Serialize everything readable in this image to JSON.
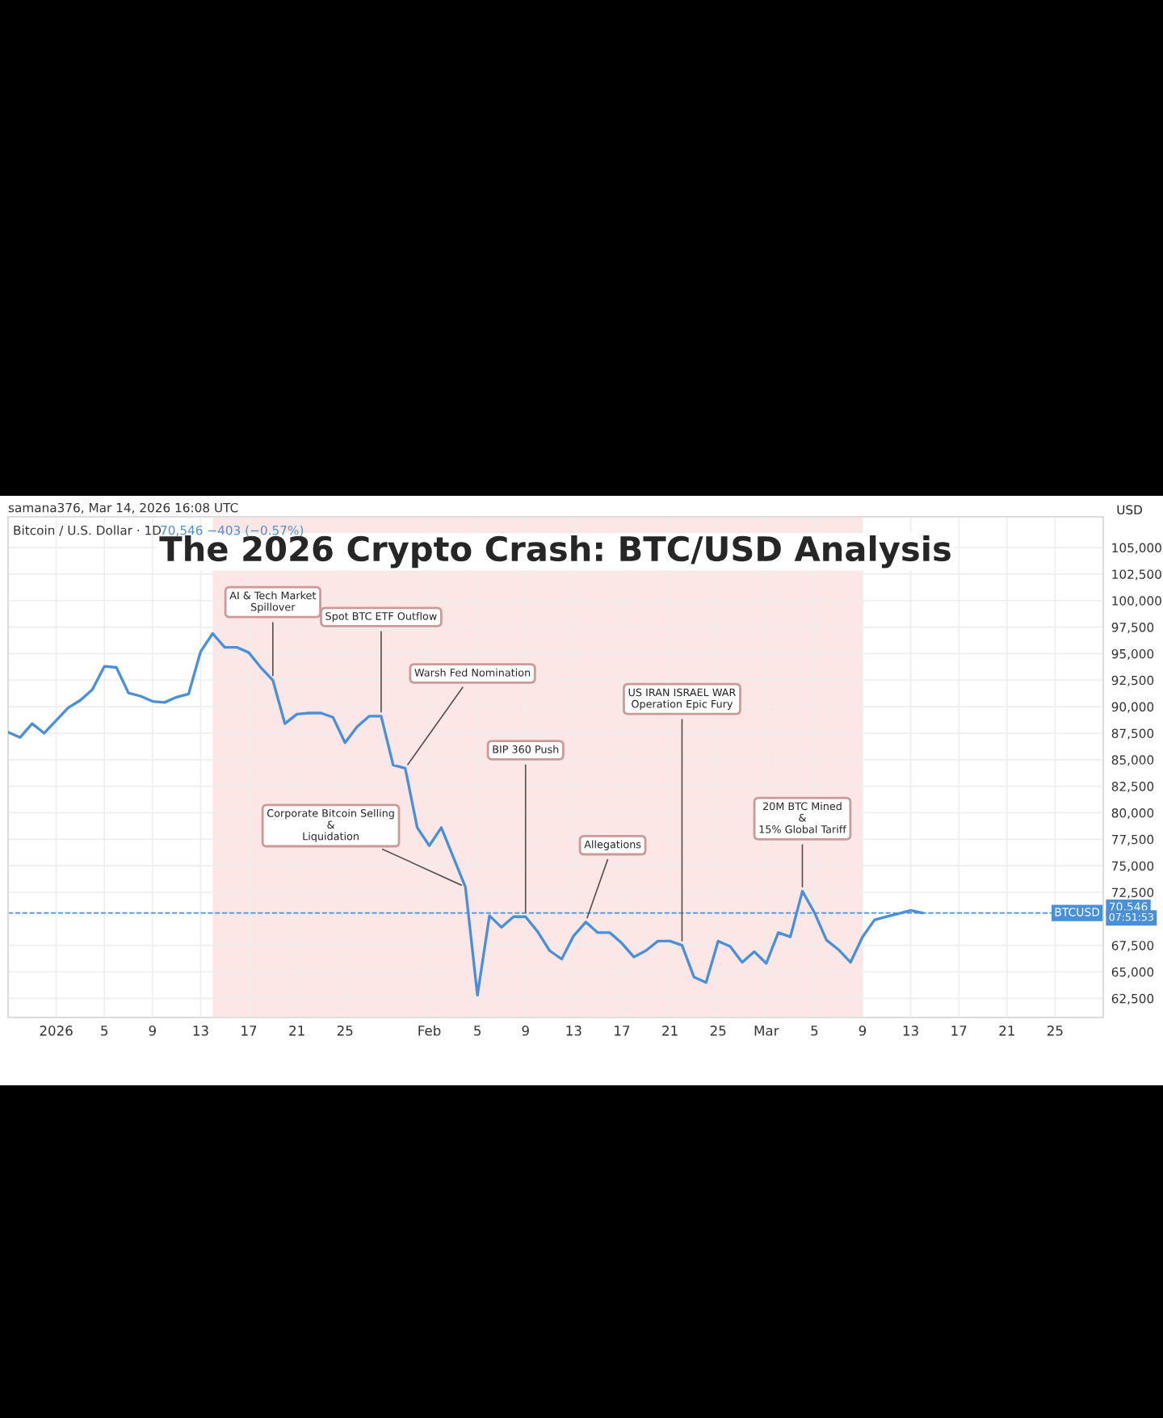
{
  "chart_data": {
    "type": "line",
    "title": "The 2026 Crypto Crash: BTC/USD Analysis",
    "ylabel": "USD",
    "x": [
      "2025-12-28",
      "2025-12-29",
      "2025-12-30",
      "2025-12-31",
      "2026-01-01",
      "2026-01-02",
      "2026-01-03",
      "2026-01-04",
      "2026-01-05",
      "2026-01-06",
      "2026-01-07",
      "2026-01-08",
      "2026-01-09",
      "2026-01-10",
      "2026-01-11",
      "2026-01-12",
      "2026-01-13",
      "2026-01-14",
      "2026-01-15",
      "2026-01-16",
      "2026-01-17",
      "2026-01-18",
      "2026-01-19",
      "2026-01-20",
      "2026-01-21",
      "2026-01-22",
      "2026-01-23",
      "2026-01-24",
      "2026-01-25",
      "2026-01-26",
      "2026-01-27",
      "2026-01-28",
      "2026-01-29",
      "2026-01-30",
      "2026-01-31",
      "2026-02-01",
      "2026-02-02",
      "2026-02-03",
      "2026-02-04",
      "2026-02-05",
      "2026-02-06",
      "2026-02-07",
      "2026-02-08",
      "2026-02-09",
      "2026-02-10",
      "2026-02-11",
      "2026-02-12",
      "2026-02-13",
      "2026-02-14",
      "2026-02-15",
      "2026-02-16",
      "2026-02-17",
      "2026-02-18",
      "2026-02-19",
      "2026-02-20",
      "2026-02-21",
      "2026-02-22",
      "2026-02-23",
      "2026-02-24",
      "2026-02-25",
      "2026-02-26",
      "2026-02-27",
      "2026-02-28",
      "2026-03-01",
      "2026-03-02",
      "2026-03-03",
      "2026-03-04",
      "2026-03-05",
      "2026-03-06",
      "2026-03-07",
      "2026-03-08",
      "2026-03-09",
      "2026-03-10",
      "2026-03-11",
      "2026-03-12",
      "2026-03-13",
      "2026-03-14"
    ],
    "series": [
      {
        "color": "#4a90d9",
        "values": [
          87600,
          87100,
          88400,
          87500,
          88700,
          89900,
          90600,
          91600,
          93800,
          93700,
          91300,
          91000,
          90500,
          90400,
          90900,
          91200,
          95200,
          96900,
          95600,
          95600,
          95100,
          93700,
          92500,
          88400,
          89300,
          89400,
          89400,
          89000,
          86600,
          88100,
          89100,
          89100,
          84500,
          84200,
          78600,
          76900,
          78600,
          75800,
          73000,
          62800,
          70300,
          69200,
          70200,
          70200,
          68800,
          67000,
          66200,
          68400,
          69700,
          68700,
          68700,
          67700,
          66400,
          67000,
          67900,
          67900,
          67500,
          64500,
          64000,
          67900,
          67400,
          65900,
          66900,
          65800,
          68700,
          68300,
          72600,
          70600,
          68000,
          67100,
          65900,
          68300,
          69900,
          70200,
          70500,
          70800,
          70546
        ]
      }
    ],
    "xlim": [
      "2025-12-28",
      "2026-03-29"
    ],
    "xticks": [
      {
        "value": "2026-01-01",
        "label": "2026"
      },
      {
        "value": "2026-01-05",
        "label": "5"
      },
      {
        "value": "2026-01-09",
        "label": "9"
      },
      {
        "value": "2026-01-13",
        "label": "13"
      },
      {
        "value": "2026-01-17",
        "label": "17"
      },
      {
        "value": "2026-01-21",
        "label": "21"
      },
      {
        "value": "2026-01-25",
        "label": "25"
      },
      {
        "value": "2026-02-01",
        "label": "Feb"
      },
      {
        "value": "2026-02-05",
        "label": "5"
      },
      {
        "value": "2026-02-09",
        "label": "9"
      },
      {
        "value": "2026-02-13",
        "label": "13"
      },
      {
        "value": "2026-02-17",
        "label": "17"
      },
      {
        "value": "2026-02-21",
        "label": "21"
      },
      {
        "value": "2026-02-25",
        "label": "25"
      },
      {
        "value": "2026-03-01",
        "label": "Mar"
      },
      {
        "value": "2026-03-05",
        "label": "5"
      },
      {
        "value": "2026-03-09",
        "label": "9"
      },
      {
        "value": "2026-03-13",
        "label": "13"
      },
      {
        "value": "2026-03-17",
        "label": "17"
      },
      {
        "value": "2026-03-21",
        "label": "21"
      },
      {
        "value": "2026-03-25",
        "label": "25"
      }
    ],
    "ylim": [
      60700,
      107900
    ],
    "yticks": [
      {
        "value": 62500,
        "label": "62,500"
      },
      {
        "value": 65000,
        "label": "65,000"
      },
      {
        "value": 67500,
        "label": "67,500"
      },
      {
        "value": 72500,
        "label": "72,500"
      },
      {
        "value": 75000,
        "label": "75,000"
      },
      {
        "value": 77500,
        "label": "77,500"
      },
      {
        "value": 80000,
        "label": "80,000"
      },
      {
        "value": 82500,
        "label": "82,500"
      },
      {
        "value": 85000,
        "label": "85,000"
      },
      {
        "value": 87500,
        "label": "87,500"
      },
      {
        "value": 90000,
        "label": "90,000"
      },
      {
        "value": 92500,
        "label": "92,500"
      },
      {
        "value": 95000,
        "label": "95,000"
      },
      {
        "value": 97500,
        "label": "97,500"
      },
      {
        "value": 100000,
        "label": "100,000"
      },
      {
        "value": 102500,
        "label": "102,500"
      },
      {
        "value": 105000,
        "label": "105,000"
      }
    ],
    "grid": true,
    "legend": false,
    "marker": "none",
    "line_style": "solid",
    "ref_lines": [
      {
        "axis": "y",
        "value": 70546,
        "label": "70,546",
        "color": "#4a90d9",
        "line_style": "dashed"
      }
    ],
    "bands": [
      {
        "axis": "x",
        "from": "2026-01-14",
        "to": "2026-03-09",
        "color": "#fde6e6"
      }
    ],
    "annotations": [
      "samana376, Mar 14, 2026 16:08 UTC",
      "Bitcoin / U.S. Dollar · 1D",
      "70,546 −403 (−0.57%)",
      "BTCUSD",
      "07:51:53",
      {
        "text": "AI & Tech Market\nSpillover",
        "x": "2026-01-19",
        "y": 92500
      },
      {
        "text": "Spot BTC ETF Outflow",
        "x": "2026-01-28",
        "y": 89100
      },
      {
        "text": "Warsh Fed Nomination",
        "x": "2026-01-30",
        "y": 84200
      },
      {
        "text": "BIP 360 Push",
        "x": "2026-02-09",
        "y": 70200
      },
      {
        "text": "Corporate Bitcoin Selling\n&\nLiquidation",
        "x": "2026-02-04",
        "y": 73000
      },
      {
        "text": "Allegations",
        "x": "2026-02-14",
        "y": 69700
      },
      {
        "text": "US IRAN ISRAEL WAR\nOperation Epic Fury",
        "x": "2026-02-22",
        "y": 67500
      },
      {
        "text": "20M BTC Mined\n&\n15% Global Tariff",
        "x": "2026-03-04",
        "y": 72600
      }
    ]
  }
}
